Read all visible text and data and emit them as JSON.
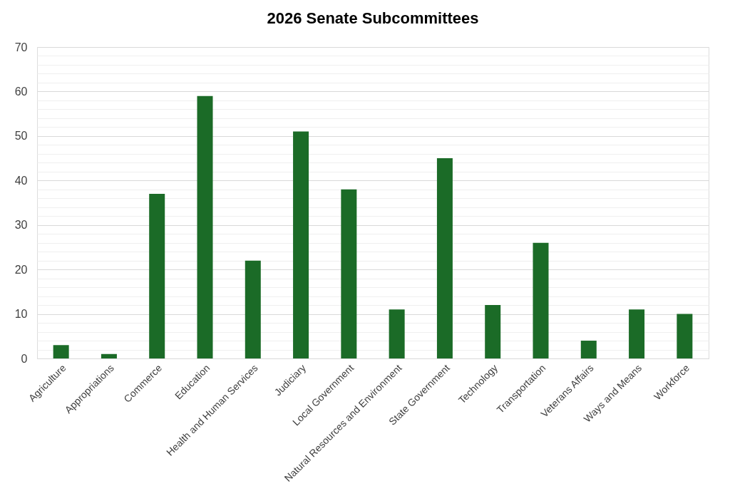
{
  "chart_data": {
    "type": "bar",
    "title": "2026 Senate Subcommittees",
    "categories": [
      "Agriculture",
      "Appropriations",
      "Commerce",
      "Education",
      "Health and Human Services",
      "Judiciary",
      "Local Government",
      "Natural Resources and Environment",
      "State Government",
      "Technology",
      "Transportation",
      "Veterans Affairs",
      "Ways and Means",
      "Workforce"
    ],
    "values": [
      3,
      1,
      37,
      59,
      22,
      51,
      38,
      11,
      45,
      12,
      26,
      4,
      11,
      10
    ],
    "color": "#1b6b27",
    "ylim": [
      0,
      70
    ],
    "yticks": [
      0,
      {
        "value": 2,
        "label": null
      },
      {
        "value": 4,
        "label": null
      },
      {
        "value": 6,
        "label": null
      },
      {
        "value": 8,
        "label": null
      },
      10,
      {
        "value": 12,
        "label": null
      },
      {
        "value": 14,
        "label": null
      },
      {
        "value": 16,
        "label": null
      },
      {
        "value": 18,
        "label": null
      },
      20,
      {
        "value": 22,
        "label": null
      },
      {
        "value": 24,
        "label": null
      },
      {
        "value": 26,
        "label": null
      },
      {
        "value": 28,
        "label": null
      },
      30,
      {
        "value": 32,
        "label": null
      },
      {
        "value": 34,
        "label": null
      },
      {
        "value": 36,
        "label": null
      },
      {
        "value": 38,
        "label": null
      },
      40,
      {
        "value": 42,
        "label": null
      },
      {
        "value": 44,
        "label": null
      },
      {
        "value": 46,
        "label": null
      },
      {
        "value": 48,
        "label": null
      },
      50,
      {
        "value": 52,
        "label": null
      },
      {
        "value": 54,
        "label": null
      },
      {
        "value": 56,
        "label": null
      },
      {
        "value": 58,
        "label": null
      },
      60,
      {
        "value": 62,
        "label": null
      },
      {
        "value": 64,
        "label": null
      },
      {
        "value": 66,
        "label": null
      },
      {
        "value": 68,
        "label": null
      },
      70
    ],
    "grid": true
  }
}
